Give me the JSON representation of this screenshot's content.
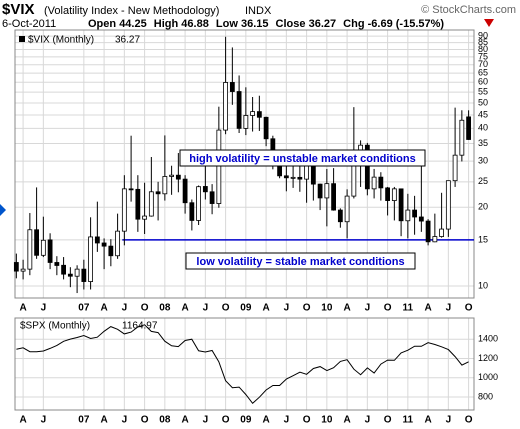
{
  "chart_data": [
    {
      "type": "candlestick",
      "title": "$VIX",
      "subtitle": "(Volatility Index - New Methodology)",
      "exchange": "INDX",
      "source": "© StockCharts.com",
      "date": "6-Oct-2011",
      "ohlc_labels": [
        "Open",
        "High",
        "Low",
        "Close",
        "Chg"
      ],
      "change": -6.69,
      "change_pct_label": "(-15.57%)",
      "name": "$VIX (Monthly)",
      "color": "#000000",
      "log_scale": true,
      "grid": true,
      "open": [
        12.3,
        11.4,
        11.6,
        16.4,
        13.1,
        15.0,
        12.3,
        12.0,
        11.1,
        10.9,
        11.6,
        10.4,
        15.4,
        14.6,
        14.2,
        13.05,
        16.2,
        23.5,
        23.4,
        18.0,
        18.5,
        22.9,
        22.5,
        26.2,
        26.5,
        25.6,
        20.8,
        17.8,
        24.0,
        22.9,
        20.65,
        39.4,
        59.9,
        55.3,
        40.0,
        44.8,
        46.35,
        44.1,
        36.5,
        28.9,
        26.35,
        25.9,
        26.0,
        25.6,
        30.7,
        24.5,
        21.7,
        24.6,
        19.5,
        17.6,
        22.05,
        32.1,
        34.5,
        23.5,
        26.05,
        23.7,
        21.2,
        23.5,
        17.75,
        19.5,
        18.35,
        17.7,
        14.75,
        15.45,
        16.5,
        25.25,
        31.6,
        44.25
      ],
      "high": [
        13.3,
        12.6,
        19.0,
        23.8,
        18.4,
        15.9,
        13.0,
        12.9,
        11.8,
        12.0,
        12.6,
        18.3,
        21.0,
        15.2,
        15.1,
        18.9,
        26.5,
        37.5,
        26.5,
        24.8,
        31.1,
        25.0,
        37.6,
        28.8,
        32.2,
        26.5,
        21.4,
        24.2,
        29.3,
        24.5,
        48.4,
        89.5,
        81.5,
        63.7,
        57.4,
        52.7,
        53.3,
        44.3,
        37.5,
        32.7,
        31.1,
        30.0,
        30.0,
        31.3,
        30.9,
        24.6,
        28.0,
        28.2,
        19.8,
        23.4,
        48.2,
        36.0,
        35.2,
        28.0,
        27.2,
        23.9,
        23.9,
        23.5,
        22.5,
        22.1,
        31.3,
        18.0,
        18.9,
        22.7,
        25.3,
        48.0,
        46.9,
        46.88
      ],
      "low": [
        10.7,
        10.6,
        11.0,
        12.7,
        12.9,
        11.6,
        11.0,
        10.6,
        9.9,
        9.4,
        9.7,
        9.7,
        13.5,
        11.6,
        11.9,
        12.7,
        14.3,
        21.0,
        16.1,
        15.8,
        18.4,
        17.8,
        21.2,
        22.3,
        22.8,
        18.9,
        16.3,
        17.1,
        21.4,
        18.8,
        19.9,
        38.0,
        49.2,
        38.4,
        37.7,
        38.9,
        39.1,
        34.2,
        27.9,
        25.8,
        23.0,
        23.7,
        22.9,
        20.8,
        21.2,
        19.5,
        16.9,
        19.4,
        16.7,
        15.2,
        21.6,
        23.9,
        22.2,
        21.6,
        21.2,
        18.6,
        17.8,
        15.5,
        15.2,
        15.7,
        16.1,
        14.3,
        14.7,
        15.3,
        15.4,
        23.9,
        29.9,
        36.15
      ],
      "close": [
        11.4,
        11.6,
        16.4,
        13.1,
        14.95,
        12.3,
        11.98,
        11.1,
        10.9,
        11.6,
        10.4,
        15.4,
        14.6,
        14.2,
        13.05,
        16.2,
        23.5,
        23.4,
        18.0,
        18.5,
        22.9,
        22.5,
        26.2,
        26.5,
        25.6,
        20.8,
        17.8,
        23.95,
        22.9,
        20.65,
        39.4,
        59.9,
        55.3,
        40.0,
        44.8,
        46.35,
        44.1,
        36.5,
        28.9,
        26.35,
        25.9,
        26.0,
        25.6,
        30.7,
        24.5,
        21.7,
        24.6,
        19.5,
        17.6,
        22.05,
        32.1,
        34.5,
        23.5,
        26.05,
        23.7,
        21.2,
        23.5,
        17.75,
        19.5,
        18.35,
        17.7,
        14.75,
        15.45,
        16.5,
        25.25,
        31.6,
        42.96,
        36.27
      ],
      "xlim": [
        -0.2,
        67.8
      ],
      "xticks": [
        {
          "value": 1,
          "label": "A"
        },
        {
          "value": 4,
          "label": "J"
        },
        {
          "value": 10,
          "label": "07"
        },
        {
          "value": 13,
          "label": "A"
        },
        {
          "value": 16,
          "label": "J"
        },
        {
          "value": 19,
          "label": "O"
        },
        {
          "value": 22,
          "label": "08"
        },
        {
          "value": 25,
          "label": "A"
        },
        {
          "value": 28,
          "label": "J"
        },
        {
          "value": 31,
          "label": "O"
        },
        {
          "value": 34,
          "label": "09"
        },
        {
          "value": 37,
          "label": "A"
        },
        {
          "value": 40,
          "label": "J"
        },
        {
          "value": 43,
          "label": "O"
        },
        {
          "value": 46,
          "label": "10"
        },
        {
          "value": 49,
          "label": "A"
        },
        {
          "value": 52,
          "label": "J"
        },
        {
          "value": 55,
          "label": "O"
        },
        {
          "value": 58,
          "label": "11"
        },
        {
          "value": 61,
          "label": "A"
        },
        {
          "value": 64,
          "label": "J"
        },
        {
          "value": 67,
          "label": "O"
        }
      ],
      "ylim": [
        9,
        95
      ],
      "yticks": [
        90,
        85,
        80,
        75,
        70,
        65,
        60,
        55,
        50,
        45,
        40,
        35,
        30,
        25,
        20,
        15,
        10
      ],
      "hline": {
        "value": 15,
        "color": "#0000cc"
      },
      "annotations": [
        "high volatility = unstable market conditions",
        "low volatility = stable market conditions"
      ]
    },
    {
      "type": "line",
      "name": "$SPX (Monthly)",
      "color": "#000000",
      "grid": true,
      "values": [
        1295,
        1311,
        1270,
        1270,
        1277,
        1304,
        1336,
        1378,
        1401,
        1418,
        1438,
        1407,
        1421,
        1482,
        1531,
        1503,
        1455,
        1474,
        1527,
        1549,
        1481,
        1468,
        1379,
        1331,
        1323,
        1386,
        1400,
        1280,
        1267,
        1283,
        1166,
        969,
        896,
        903,
        826,
        735,
        798,
        873,
        919,
        919,
        987,
        1021,
        1057,
        1036,
        1096,
        1115,
        1074,
        1104,
        1169,
        1187,
        1089,
        1031,
        1102,
        1049,
        1141,
        1183,
        1181,
        1258,
        1286,
        1327,
        1326,
        1364,
        1345,
        1321,
        1292,
        1219,
        1131,
        1164.97
      ],
      "xlim": [
        -0.2,
        67.8
      ],
      "xticks": [
        {
          "value": 1,
          "label": "A"
        },
        {
          "value": 4,
          "label": "J"
        },
        {
          "value": 10,
          "label": "07"
        },
        {
          "value": 13,
          "label": "A"
        },
        {
          "value": 16,
          "label": "J"
        },
        {
          "value": 19,
          "label": "O"
        },
        {
          "value": 22,
          "label": "08"
        },
        {
          "value": 25,
          "label": "A"
        },
        {
          "value": 28,
          "label": "J"
        },
        {
          "value": 31,
          "label": "O"
        },
        {
          "value": 34,
          "label": "09"
        },
        {
          "value": 37,
          "label": "A"
        },
        {
          "value": 40,
          "label": "J"
        },
        {
          "value": 43,
          "label": "O"
        },
        {
          "value": 46,
          "label": "10"
        },
        {
          "value": 49,
          "label": "A"
        },
        {
          "value": 52,
          "label": "J"
        },
        {
          "value": 55,
          "label": "O"
        },
        {
          "value": 58,
          "label": "11"
        },
        {
          "value": 61,
          "label": "A"
        },
        {
          "value": 64,
          "label": "J"
        },
        {
          "value": 67,
          "label": "O"
        }
      ],
      "ylim": [
        665,
        1620
      ],
      "yticks": [
        800,
        1000,
        1200,
        1400
      ]
    }
  ]
}
